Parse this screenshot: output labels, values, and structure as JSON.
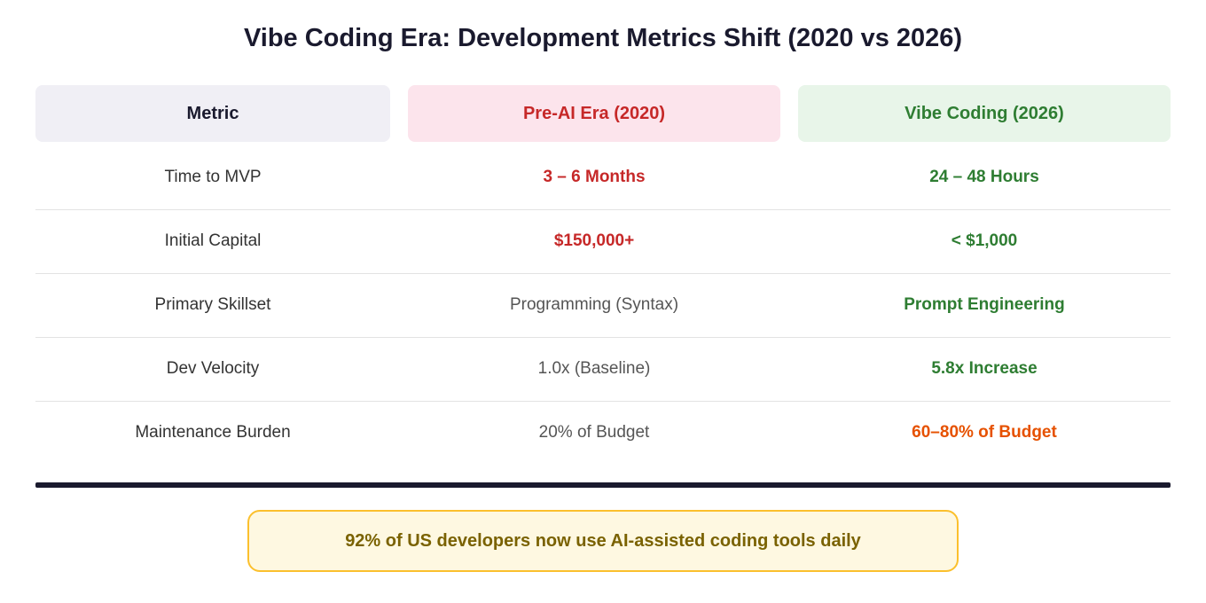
{
  "title": "Vibe Coding Era: Development Metrics Shift (2020 vs 2026)",
  "headers": {
    "metric": "Metric",
    "pre": "Pre-AI Era (2020)",
    "vibe": "Vibe Coding (2026)"
  },
  "rows": [
    {
      "metric": "Time to MVP",
      "pre": "3 – 6 Months",
      "vibe": "24 – 48 Hours"
    },
    {
      "metric": "Initial Capital",
      "pre": "$150,000+",
      "vibe": "< $1,000"
    },
    {
      "metric": "Primary Skillset",
      "pre": "Programming (Syntax)",
      "vibe": "Prompt Engineering"
    },
    {
      "metric": "Dev Velocity",
      "pre": "1.0x (Baseline)",
      "vibe": "5.8x Increase"
    },
    {
      "metric": "Maintenance Burden",
      "pre": "20% of Budget",
      "vibe": "60–80% of Budget"
    }
  ],
  "callout": "92% of US developers now use AI-assisted coding tools daily",
  "colors": {
    "red": "#c62828",
    "green": "#2e7d32",
    "orange": "#e65100",
    "dark": "#1a1a2e",
    "callout_border": "#fbc02d"
  }
}
